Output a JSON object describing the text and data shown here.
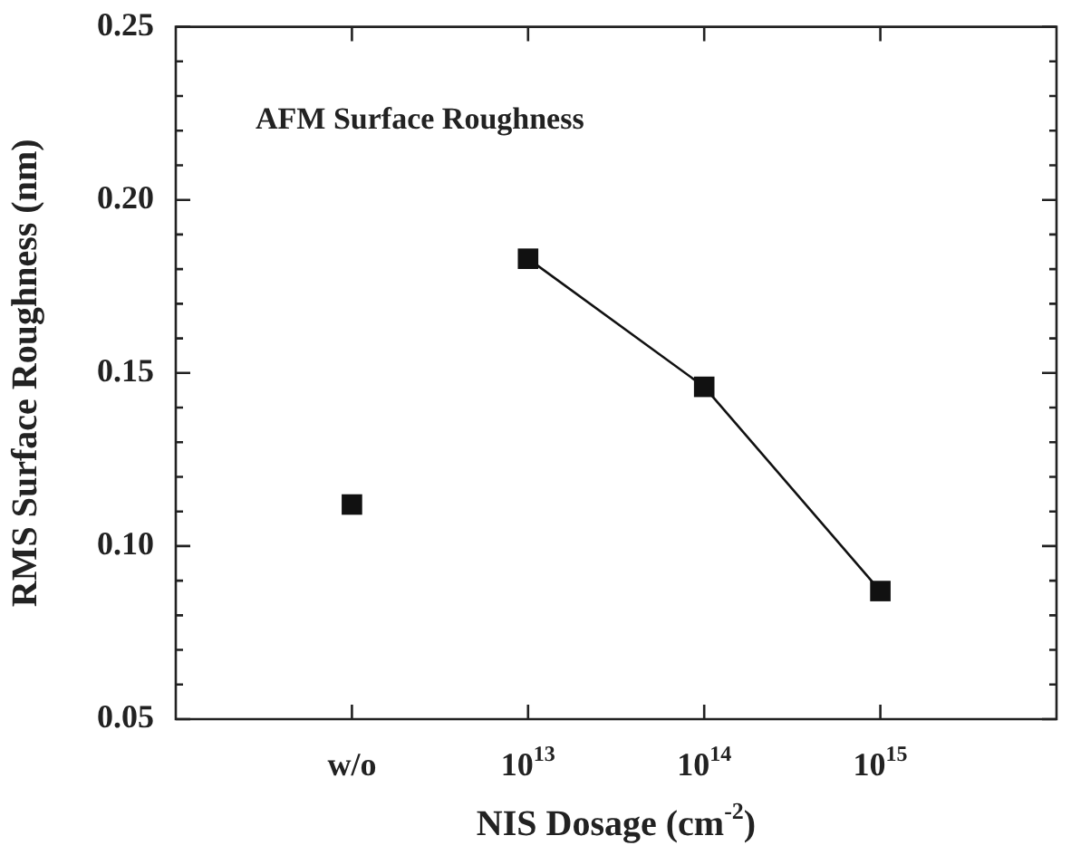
{
  "chart_data": {
    "type": "line",
    "xlabel": "NIS Dosage (cm$^{-2}$)",
    "ylabel": "RMS Surface Roughness (nm)",
    "annotations": [
      "AFM Surface Roughness"
    ],
    "categories": [
      "w/o",
      "10$^{13}$",
      "10$^{14}$",
      "10$^{15}$"
    ],
    "series": [
      {
        "type": "scatter",
        "color": "#111111",
        "values": [
          0.112,
          null,
          null,
          null
        ]
      },
      {
        "color": "#111111",
        "values": [
          null,
          0.183,
          0.146,
          0.087
        ]
      }
    ],
    "marker": "square",
    "line_style": "solid",
    "ylim": [
      0.05,
      0.25
    ],
    "yticks": [
      {
        "value": 0.05,
        "label": "0.05"
      },
      {
        "value": 0.06,
        "label": null
      },
      {
        "value": 0.07,
        "label": null
      },
      {
        "value": 0.08,
        "label": null
      },
      {
        "value": 0.09,
        "label": null
      },
      {
        "value": 0.1,
        "label": "0.10"
      },
      {
        "value": 0.11,
        "label": null
      },
      {
        "value": 0.12,
        "label": null
      },
      {
        "value": 0.13,
        "label": null
      },
      {
        "value": 0.14,
        "label": null
      },
      {
        "value": 0.15,
        "label": "0.15"
      },
      {
        "value": 0.16,
        "label": null
      },
      {
        "value": 0.17,
        "label": null
      },
      {
        "value": 0.18,
        "label": null
      },
      {
        "value": 0.19,
        "label": null
      },
      {
        "value": 0.2,
        "label": "0.20"
      },
      {
        "value": 0.21,
        "label": null
      },
      {
        "value": 0.22,
        "label": null
      },
      {
        "value": 0.23,
        "label": null
      },
      {
        "value": 0.24,
        "label": null
      },
      {
        "value": 0.25,
        "label": "0.25"
      }
    ],
    "legend": false
  }
}
